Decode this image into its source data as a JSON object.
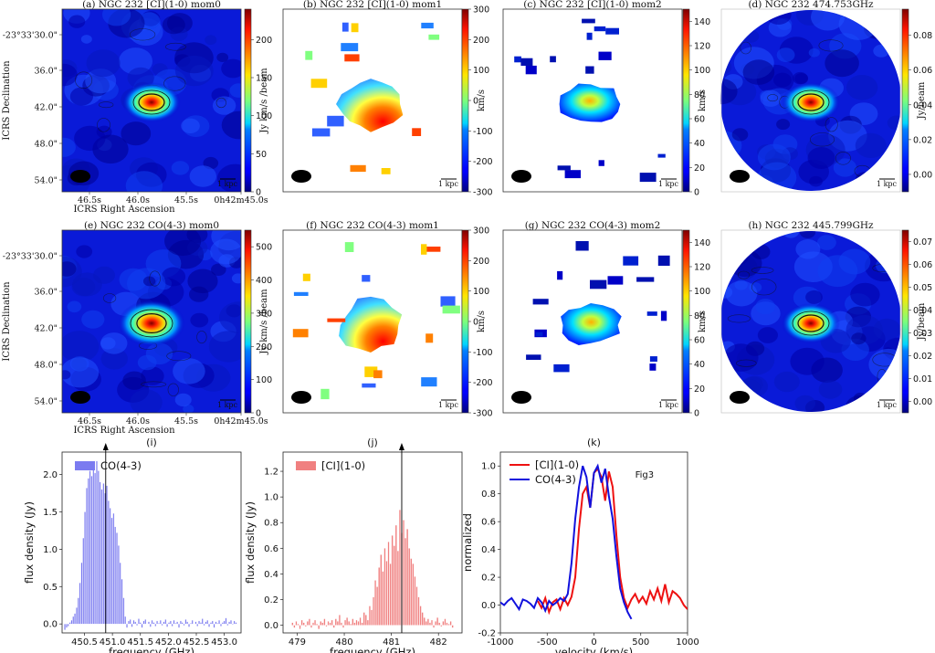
{
  "chart_data": [
    {
      "type": "heatmap",
      "panel": "a",
      "title": "(a) NGC 232 [CI](1-0) mom0",
      "cmap": "jet",
      "colorbar_label": "Jy km/s /beam",
      "cbar_ticks": [
        "0",
        "50",
        "100",
        "150",
        "200"
      ],
      "cbar_range": [
        0,
        240
      ],
      "shape": "square",
      "blob_size": "small",
      "ylabel": "ICRS Declination",
      "xlabel": "ICRS Right Ascension",
      "yticks": [
        "-23°33'30.0\"",
        "36.0\"",
        "42.0\"",
        "48.0\"",
        "54.0\""
      ],
      "xticks": [
        "46.5s",
        "46.0s",
        "45.5s",
        "0h42m45.0s"
      ],
      "scalebar": "1 kpc"
    },
    {
      "type": "heatmap",
      "panel": "b",
      "title": "(b) NGC 232 [CI](1-0) mom1",
      "cmap": "jet",
      "colorbar_label": "km/s",
      "cbar_ticks": [
        "300",
        "200",
        "100",
        "0",
        "-100",
        "-200",
        "-300"
      ],
      "cbar_range": [
        -300,
        300
      ],
      "shape": "square",
      "style": "velocity",
      "scalebar": "1 kpc"
    },
    {
      "type": "heatmap",
      "panel": "c",
      "title": "(c) NGC 232 [CI](1-0) mom2",
      "cmap": "jet",
      "colorbar_label": "km/s",
      "cbar_ticks": [
        "140",
        "120",
        "100",
        "80",
        "60",
        "40",
        "20",
        "0"
      ],
      "cbar_range": [
        0,
        150
      ],
      "shape": "square",
      "style": "dispersion",
      "scalebar": "1 kpc"
    },
    {
      "type": "heatmap",
      "panel": "d",
      "title": "(d) NGC 232 474.753GHz",
      "cmap": "jet",
      "colorbar_label": "Jy/beam",
      "cbar_ticks": [
        "0.08",
        "0.06",
        "0.04",
        "0.02",
        "0.00"
      ],
      "cbar_range": [
        -0.01,
        0.095
      ],
      "shape": "circle",
      "scalebar": "1 kpc"
    },
    {
      "type": "heatmap",
      "panel": "e",
      "title": "(e) NGC 232 CO(4-3) mom0",
      "cmap": "jet",
      "colorbar_label": "Jy km/s /beam",
      "cbar_ticks": [
        "500",
        "400",
        "300",
        "200",
        "100",
        "0"
      ],
      "cbar_range": [
        0,
        550
      ],
      "shape": "square",
      "blob_size": "medium",
      "ylabel": "ICRS Declination",
      "xlabel": "ICRS Right Ascension",
      "yticks": [
        "-23°33'30.0\"",
        "36.0\"",
        "42.0\"",
        "48.0\"",
        "54.0\""
      ],
      "xticks": [
        "46.5s",
        "46.0s",
        "45.5s",
        "0h42m45.0s"
      ],
      "scalebar": "1 kpc"
    },
    {
      "type": "heatmap",
      "panel": "f",
      "title": "(f) NGC 232 CO(4-3) mom1",
      "cmap": "jet",
      "colorbar_label": "km/s",
      "cbar_ticks": [
        "300",
        "200",
        "100",
        "0",
        "-100",
        "-200",
        "-300"
      ],
      "cbar_range": [
        -300,
        300
      ],
      "shape": "square",
      "style": "velocity",
      "scalebar": "1 kpc"
    },
    {
      "type": "heatmap",
      "panel": "g",
      "title": "(g) NGC 232 CO(4-3) mom2",
      "cmap": "jet",
      "colorbar_label": "km/s",
      "cbar_ticks": [
        "140",
        "120",
        "100",
        "80",
        "60",
        "40",
        "20",
        "0"
      ],
      "cbar_range": [
        0,
        150
      ],
      "shape": "square",
      "style": "dispersion",
      "scalebar": "1 kpc"
    },
    {
      "type": "heatmap",
      "panel": "h",
      "title": "(h) NGC 232 445.799GHz",
      "cmap": "jet",
      "colorbar_label": "Jy/beam",
      "cbar_ticks": [
        "0.07",
        "0.06",
        "0.05",
        "0.04",
        "0.03",
        "0.02",
        "0.01",
        "0.00"
      ],
      "cbar_range": [
        -0.005,
        0.075
      ],
      "shape": "circle",
      "scalebar": "1 kpc"
    },
    {
      "type": "bar",
      "panel": "i",
      "title": "(i)",
      "legend": "CO(4-3)",
      "color": "#7b7bf0",
      "xlabel": "frequency (GHz)",
      "ylabel": "flux density (Jy)",
      "xlim": [
        450.1,
        453.3
      ],
      "ylim": [
        -0.12,
        2.3
      ],
      "xticks": [
        450.5,
        451.0,
        451.5,
        452.0,
        452.5,
        453.0
      ],
      "yticks": [
        0.0,
        0.5,
        1.0,
        1.5,
        2.0
      ],
      "marker_line": 450.88,
      "x": [
        450.15,
        450.18,
        450.21,
        450.24,
        450.27,
        450.3,
        450.33,
        450.36,
        450.39,
        450.42,
        450.45,
        450.48,
        450.51,
        450.54,
        450.57,
        450.6,
        450.63,
        450.66,
        450.69,
        450.72,
        450.75,
        450.78,
        450.81,
        450.84,
        450.87,
        450.9,
        450.93,
        450.96,
        450.99,
        451.02,
        451.05,
        451.08,
        451.11,
        451.14,
        451.17,
        451.2,
        451.23,
        451.26,
        451.29,
        451.32,
        451.35,
        451.38,
        451.41,
        451.44,
        451.47,
        451.5,
        451.53,
        451.56,
        451.59,
        451.62,
        451.65,
        451.68,
        451.71,
        451.74,
        451.77,
        451.8,
        451.83,
        451.86,
        451.89,
        451.92,
        451.95,
        451.98,
        452.01,
        452.04,
        452.07,
        452.1,
        452.13,
        452.16,
        452.19,
        452.22,
        452.25,
        452.28,
        452.31,
        452.34,
        452.37,
        452.4,
        452.43,
        452.46,
        452.49,
        452.52,
        452.55,
        452.58,
        452.61,
        452.64,
        452.67,
        452.7,
        452.73,
        452.76,
        452.79,
        452.82,
        452.85,
        452.88,
        452.91,
        452.94,
        452.97,
        453.0,
        453.03,
        453.06,
        453.09,
        453.12,
        453.15,
        453.18,
        453.21
      ],
      "values": [
        -0.08,
        -0.05,
        -0.03,
        0.02,
        0.05,
        0.1,
        0.14,
        0.22,
        0.35,
        0.55,
        0.82,
        1.15,
        1.5,
        1.82,
        1.95,
        2.05,
        1.98,
        2.1,
        2.02,
        2.18,
        2.05,
        1.9,
        1.8,
        1.88,
        1.75,
        1.85,
        1.65,
        1.55,
        1.42,
        1.48,
        1.3,
        1.22,
        1.05,
        0.82,
        0.6,
        0.35,
        0.1,
        -0.05,
        0.04,
        0.06,
        -0.04,
        0.05,
        0.03,
        -0.02,
        0.07,
        0.02,
        -0.05,
        0.04,
        0.06,
        0.0,
        0.03,
        -0.04,
        0.05,
        0.02,
        -0.03,
        0.04,
        0.01,
        0.05,
        -0.02,
        0.03,
        0.06,
        -0.04,
        0.02,
        0.04,
        -0.03,
        0.05,
        0.01,
        0.03,
        -0.05,
        0.04,
        0.02,
        -0.02,
        0.06,
        0.03,
        -0.04,
        0.01,
        0.05,
        0.0,
        0.03,
        -0.03,
        0.04,
        0.02,
        0.07,
        -0.02,
        0.03,
        0.05,
        -0.04,
        0.02,
        0.04,
        -0.05,
        0.03,
        0.01,
        0.05,
        -0.03,
        0.02,
        0.04,
        0.08,
        -0.02,
        0.03,
        0.05,
        -0.01,
        0.04,
        0.02
      ]
    },
    {
      "type": "bar",
      "panel": "j",
      "title": "(j)",
      "legend": "[CI](1-0)",
      "color": "#f08080",
      "xlabel": "frequency (GHz)",
      "ylabel": "flux density (Jy)",
      "xlim": [
        478.7,
        482.5
      ],
      "ylim": [
        -0.06,
        1.35
      ],
      "xticks": [
        479,
        480,
        481,
        482
      ],
      "yticks": [
        0.0,
        0.2,
        0.4,
        0.6,
        0.8,
        1.0,
        1.2
      ],
      "marker_line": 481.22,
      "x": [
        478.9,
        478.94,
        478.98,
        479.02,
        479.06,
        479.1,
        479.14,
        479.18,
        479.22,
        479.26,
        479.3,
        479.34,
        479.38,
        479.42,
        479.46,
        479.5,
        479.54,
        479.58,
        479.62,
        479.66,
        479.7,
        479.74,
        479.78,
        479.82,
        479.86,
        479.9,
        479.94,
        479.98,
        480.02,
        480.06,
        480.1,
        480.14,
        480.18,
        480.22,
        480.26,
        480.3,
        480.34,
        480.38,
        480.42,
        480.46,
        480.5,
        480.54,
        480.58,
        480.62,
        480.66,
        480.7,
        480.74,
        480.78,
        480.82,
        480.86,
        480.9,
        480.94,
        480.98,
        481.02,
        481.06,
        481.1,
        481.14,
        481.18,
        481.22,
        481.26,
        481.3,
        481.34,
        481.38,
        481.42,
        481.46,
        481.5,
        481.54,
        481.58,
        481.62,
        481.66,
        481.7,
        481.74,
        481.78,
        481.82,
        481.86,
        481.9,
        481.94,
        481.98,
        482.02,
        482.06,
        482.1,
        482.14,
        482.18,
        482.22,
        482.26,
        482.3
      ],
      "values": [
        0.02,
        -0.02,
        0.03,
        0.01,
        -0.03,
        0.04,
        0.02,
        -0.01,
        0.03,
        0.05,
        -0.02,
        0.02,
        0.04,
        0.01,
        -0.03,
        0.03,
        0.02,
        0.05,
        -0.01,
        0.03,
        0.02,
        0.04,
        -0.02,
        0.05,
        0.03,
        0.08,
        0.02,
        -0.02,
        0.04,
        0.06,
        0.03,
        0.01,
        0.05,
        0.02,
        0.04,
        0.03,
        0.06,
        0.02,
        0.1,
        0.08,
        0.04,
        0.15,
        0.12,
        0.22,
        0.35,
        0.3,
        0.45,
        0.55,
        0.42,
        0.6,
        0.5,
        0.65,
        0.48,
        0.7,
        0.62,
        0.78,
        0.58,
        0.9,
        0.72,
        0.82,
        0.68,
        0.75,
        0.6,
        0.52,
        0.48,
        0.38,
        0.3,
        0.22,
        0.15,
        0.1,
        0.06,
        0.03,
        0.05,
        0.02,
        0.04,
        -0.02,
        0.03,
        0.06,
        0.02,
        -0.01,
        0.03,
        0.05,
        0.02,
        0.01,
        0.03,
        -0.02
      ]
    },
    {
      "type": "line",
      "panel": "k",
      "title": "(k)",
      "xlabel": "velocity (km/s)",
      "ylabel": "normalized",
      "xlim": [
        -1000,
        1000
      ],
      "ylim": [
        -0.2,
        1.1
      ],
      "xticks": [
        -1000,
        -500,
        0,
        500,
        1000
      ],
      "yticks": [
        -0.2,
        0.0,
        0.2,
        0.4,
        0.6,
        0.8,
        1.0
      ],
      "annotation": "Fig3",
      "series": [
        {
          "name": "[CI](1-0)",
          "color": "#ee1111",
          "x": [
            -600,
            -560,
            -520,
            -480,
            -440,
            -400,
            -360,
            -320,
            -280,
            -240,
            -200,
            -160,
            -120,
            -80,
            -40,
            0,
            40,
            80,
            120,
            160,
            200,
            240,
            280,
            320,
            360,
            400,
            440,
            480,
            520,
            560,
            600,
            640,
            680,
            720,
            760,
            800,
            840,
            880,
            920,
            960,
            1000
          ],
          "values": [
            0.03,
            -0.02,
            0.05,
            -0.05,
            0.02,
            0.04,
            -0.03,
            0.05,
            0.0,
            0.06,
            0.2,
            0.55,
            0.8,
            0.85,
            0.7,
            0.95,
            0.98,
            0.92,
            0.75,
            0.96,
            0.85,
            0.5,
            0.2,
            0.05,
            -0.02,
            0.04,
            0.08,
            0.02,
            0.06,
            0.01,
            0.1,
            0.04,
            0.12,
            0.03,
            0.15,
            0.02,
            0.1,
            0.08,
            0.05,
            0.0,
            -0.03
          ]
        },
        {
          "name": "CO(4-3)",
          "color": "#1111dd",
          "x": [
            -1000,
            -960,
            -920,
            -880,
            -840,
            -800,
            -760,
            -720,
            -680,
            -640,
            -600,
            -560,
            -520,
            -480,
            -440,
            -400,
            -360,
            -320,
            -280,
            -240,
            -200,
            -160,
            -120,
            -80,
            -40,
            0,
            40,
            80,
            120,
            160,
            200,
            240,
            280,
            320,
            360,
            400
          ],
          "values": [
            0.02,
            0.0,
            0.03,
            0.05,
            0.01,
            -0.03,
            0.04,
            0.03,
            0.01,
            -0.02,
            0.05,
            0.02,
            -0.04,
            0.03,
            0.0,
            0.02,
            0.05,
            0.03,
            0.08,
            0.3,
            0.62,
            0.85,
            1.0,
            0.92,
            0.7,
            0.95,
            1.0,
            0.88,
            0.98,
            0.78,
            0.62,
            0.35,
            0.12,
            0.02,
            -0.05,
            -0.1
          ]
        }
      ]
    }
  ]
}
